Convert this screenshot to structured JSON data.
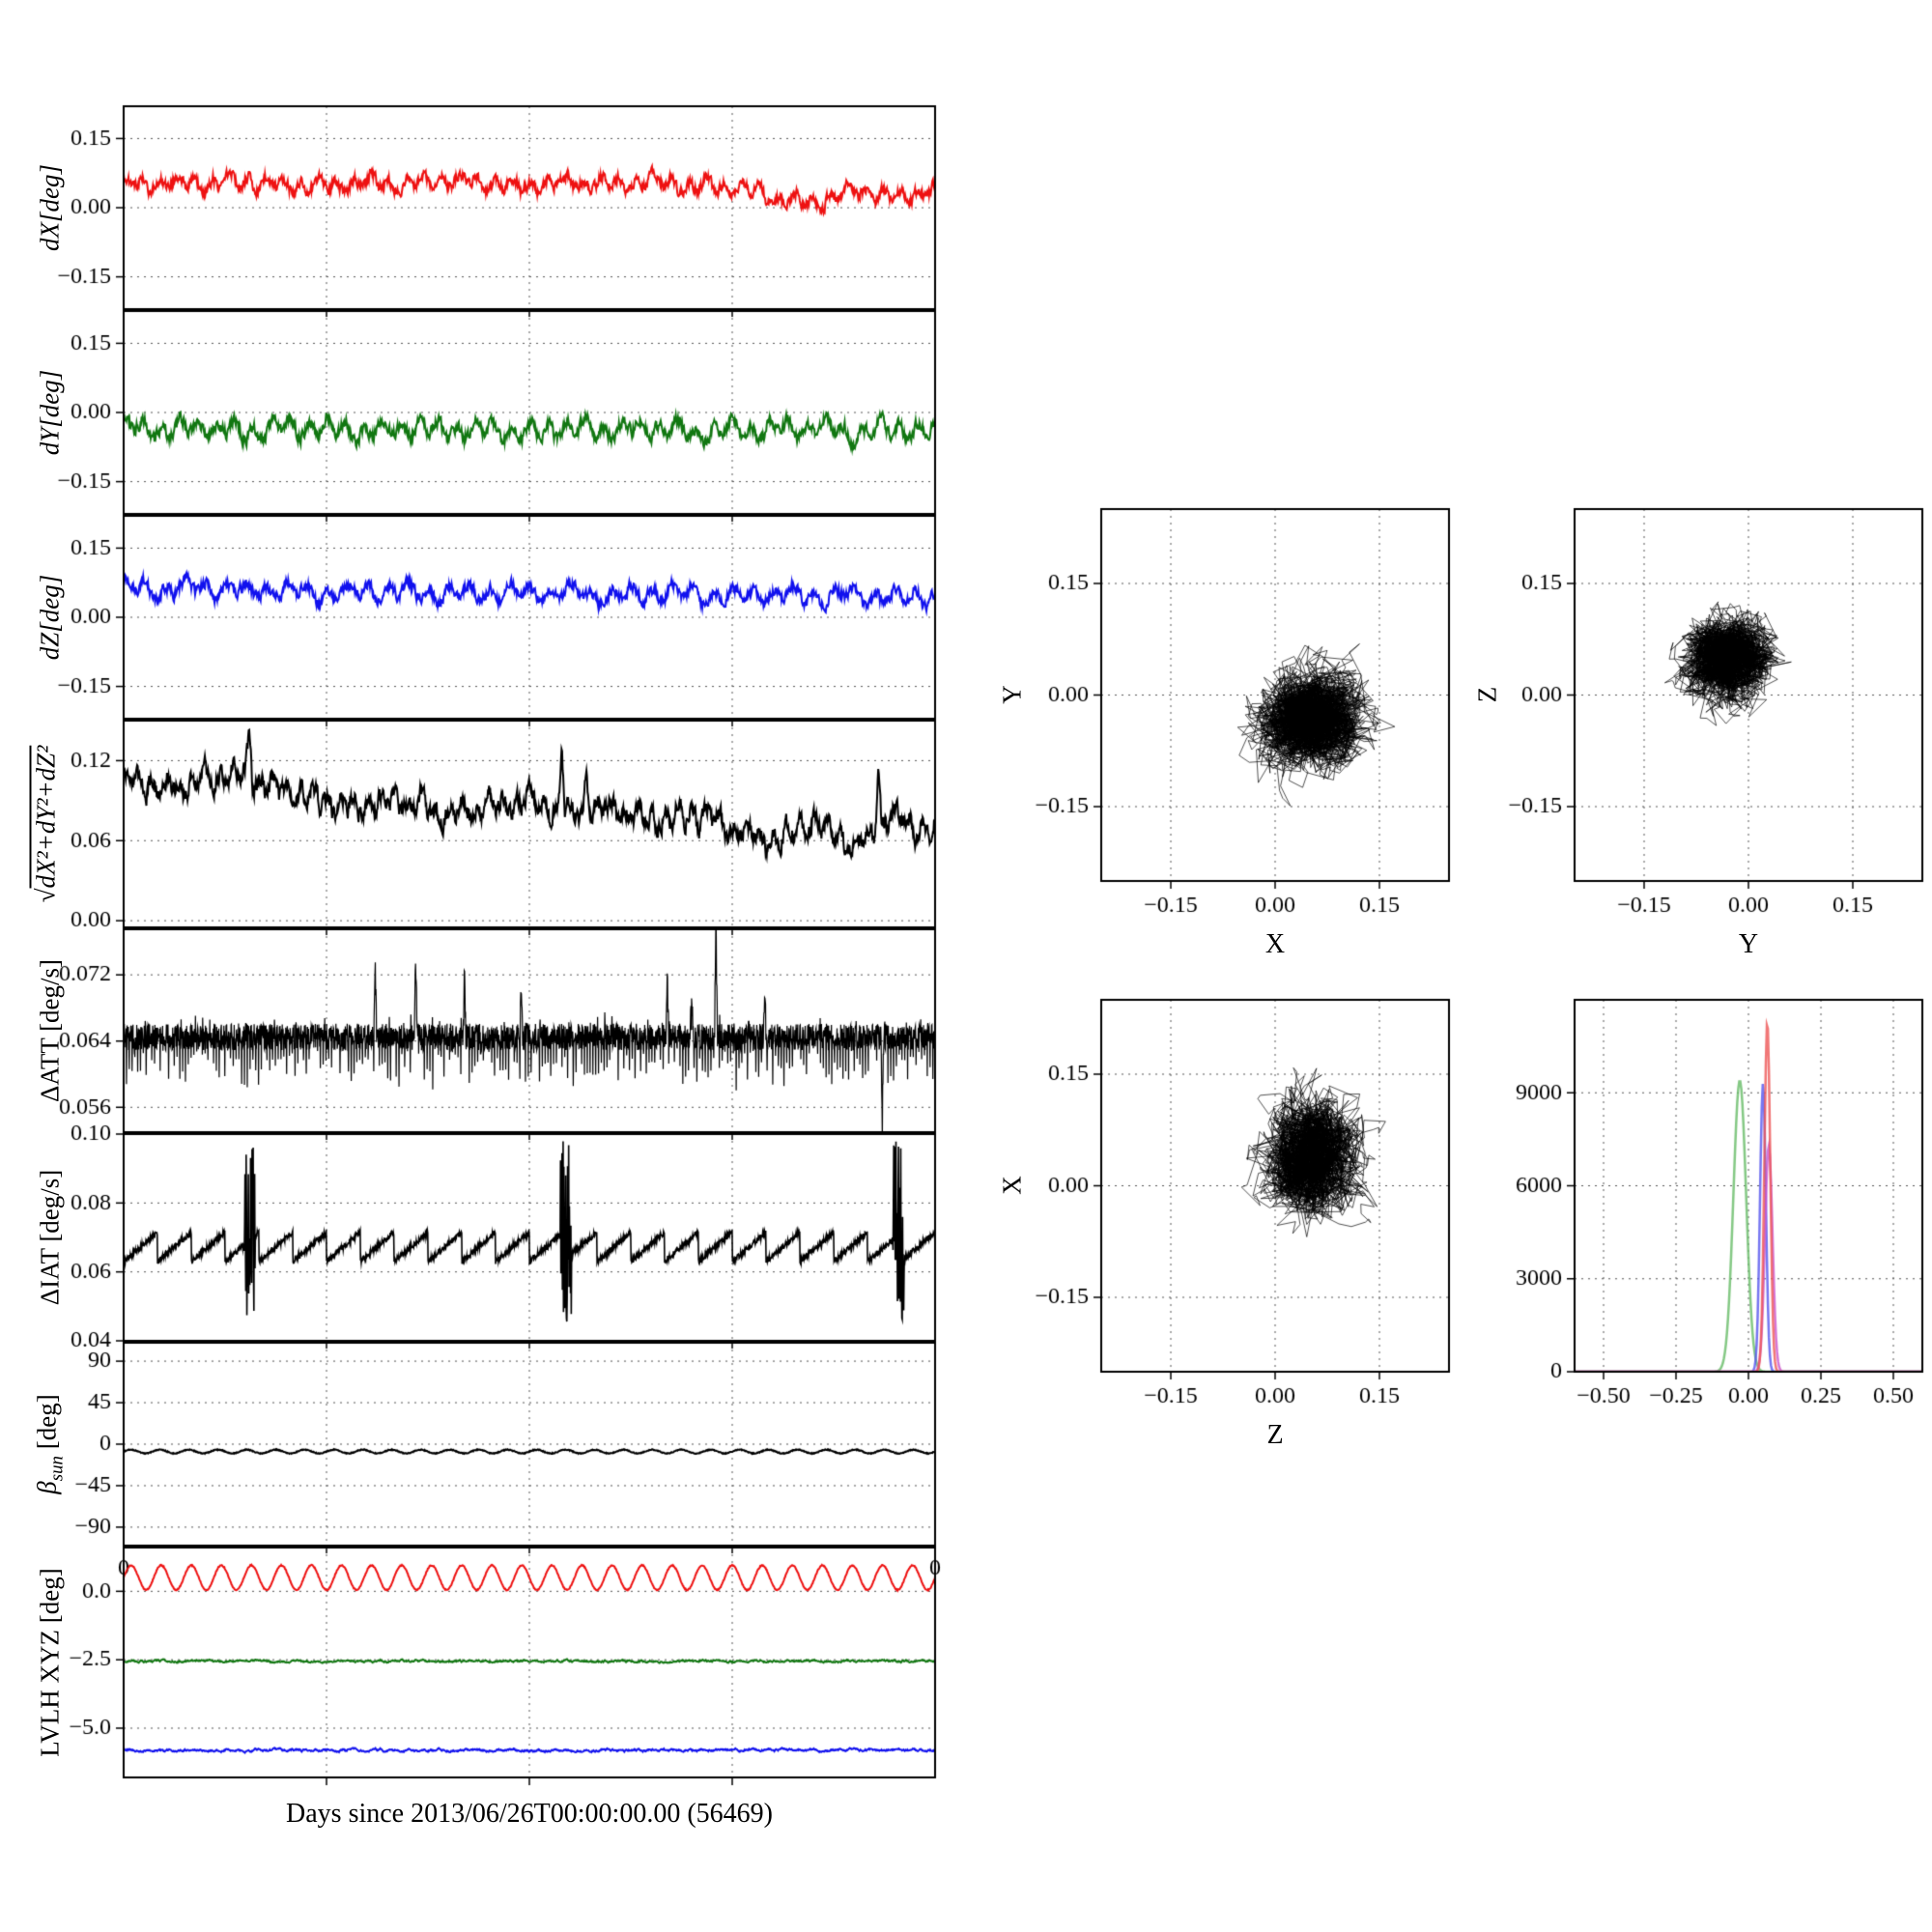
{
  "figure": {
    "background": "#ffffff",
    "xlabel": "Days since 2013/06/26T00:00:00.00 (56469)"
  },
  "chart_data": [
    {
      "id": "dX",
      "type": "line",
      "ylabel": "dX[deg]",
      "ylim": [
        -0.22,
        0.22
      ],
      "ytick_values": [
        0.15,
        0.0,
        -0.15
      ],
      "ytick_labels": [
        "0.15",
        "0.00",
        "−0.15"
      ],
      "x_range_days": [
        0,
        7
      ],
      "series": [
        {
          "color": "#ee1111",
          "lw": 2,
          "gen": {
            "kind": "keypoints",
            "noise": 0.012,
            "wobble": [
              0.012,
              46
            ],
            "points": [
              0.05,
              0.055,
              0.05,
              0.06,
              0.05,
              0.045,
              0.055,
              0.05,
              0.06,
              0.05,
              0.045,
              0.055,
              0.05,
              0.06,
              0.045,
              0.05,
              0.02,
              0.01,
              0.035,
              0.02,
              0.04
            ]
          }
        }
      ]
    },
    {
      "id": "dY",
      "type": "line",
      "ylabel": "dY[deg]",
      "ylim": [
        -0.22,
        0.22
      ],
      "ytick_values": [
        0.15,
        0.0,
        -0.15
      ],
      "ytick_labels": [
        "0.15",
        "0.00",
        "−0.15"
      ],
      "series": [
        {
          "color": "#117711",
          "lw": 2,
          "gen": {
            "kind": "keypoints",
            "noise": 0.013,
            "wobble": [
              0.015,
              44
            ],
            "points": [
              -0.03,
              -0.04,
              -0.03,
              -0.045,
              -0.035,
              -0.03,
              -0.045,
              -0.03,
              -0.04,
              -0.035,
              -0.045,
              -0.03,
              -0.04,
              -0.03,
              -0.045,
              -0.035,
              -0.04,
              -0.03,
              -0.045,
              -0.035,
              -0.04
            ]
          }
        }
      ]
    },
    {
      "id": "dZ",
      "type": "line",
      "ylabel": "dZ[deg]",
      "ylim": [
        -0.22,
        0.22
      ],
      "ytick_values": [
        0.15,
        0.0,
        -0.15
      ],
      "ytick_labels": [
        "0.15",
        "0.00",
        "−0.15"
      ],
      "series": [
        {
          "color": "#1111ee",
          "lw": 2,
          "gen": {
            "kind": "keypoints",
            "noise": 0.012,
            "wobble": [
              0.014,
              40
            ],
            "points": [
              0.065,
              0.06,
              0.065,
              0.055,
              0.06,
              0.05,
              0.06,
              0.055,
              0.05,
              0.055,
              0.05,
              0.055,
              0.045,
              0.055,
              0.05,
              0.045,
              0.05,
              0.045,
              0.05,
              0.04,
              0.05
            ]
          }
        }
      ]
    },
    {
      "id": "mag",
      "type": "line",
      "ylabel_prefix": "√",
      "ylabel_radicand": "dX²+dY²+dZ²",
      "ylim": [
        -0.005,
        0.15
      ],
      "ytick_values": [
        0.12,
        0.06,
        0.0
      ],
      "ytick_labels": [
        "0.12",
        "0.06",
        "0.00"
      ],
      "series": [
        {
          "color": "#000000",
          "lw": 2,
          "gen": {
            "kind": "keypoints",
            "noise": 0.007,
            "wobble": [
              0.006,
              60
            ],
            "spike_width": 0.004,
            "spikes": [
              [
                0.155,
                0.035
              ],
              [
                0.54,
                0.045
              ],
              [
                0.57,
                0.03
              ],
              [
                0.93,
                0.05
              ]
            ],
            "points": [
              0.105,
              0.1,
              0.105,
              0.11,
              0.095,
              0.09,
              0.085,
              0.09,
              0.08,
              0.085,
              0.09,
              0.08,
              0.085,
              0.075,
              0.08,
              0.07,
              0.06,
              0.075,
              0.055,
              0.08,
              0.065
            ]
          }
        }
      ]
    },
    {
      "id": "dATT",
      "type": "line",
      "ylabel": "ΔATT [deg/s]",
      "ylim": [
        0.053,
        0.0775
      ],
      "ytick_values": [
        0.072,
        0.064,
        0.056
      ],
      "ytick_labels": [
        "0.072",
        "0.064",
        "0.056"
      ],
      "series": [
        {
          "color": "#000000",
          "lw": 1.2,
          "n": 2600,
          "gen": {
            "kind": "densenoise",
            "mean": 0.0645,
            "noise": 0.0016,
            "spike_width": 0.0018,
            "spikes": [
              [
                0.31,
                0.009
              ],
              [
                0.36,
                0.011
              ],
              [
                0.42,
                0.008
              ],
              [
                0.49,
                0.006
              ],
              [
                0.67,
                0.007
              ],
              [
                0.7,
                0.006
              ],
              [
                0.73,
                0.016
              ],
              [
                0.79,
                0.006
              ],
              [
                0.935,
                -0.009
              ]
            ]
          }
        }
      ]
    },
    {
      "id": "dIAT",
      "type": "line",
      "ylabel": "ΔIAT [deg/s]",
      "ylim": [
        0.04,
        0.1
      ],
      "ytick_values": [
        0.1,
        0.08,
        0.06,
        0.04
      ],
      "ytick_labels": [
        "0.10",
        "0.08",
        "0.06",
        "0.04"
      ],
      "series": [
        {
          "color": "#000000",
          "lw": 1.6,
          "n": 2200,
          "gen": {
            "kind": "sawtooth",
            "base": 0.063,
            "rise": 0.0085,
            "teeth": 24,
            "noise": 0.0008,
            "bursts": [
              0.155,
              0.545,
              0.955
            ],
            "burst_lo": 0.045,
            "burst_hi": 0.098
          }
        }
      ]
    },
    {
      "id": "beta",
      "type": "line",
      "ylabel_base": "β",
      "ylabel_sub": "sun",
      "ylabel_suffix": " [deg]",
      "ylim": [
        -110,
        110
      ],
      "ytick_values": [
        90,
        45,
        0,
        -45,
        -90
      ],
      "ytick_labels": [
        "90",
        "45",
        "0",
        "−45",
        "−90"
      ],
      "xedge_labels": [
        "0",
        "0"
      ],
      "series": [
        {
          "color": "#000000",
          "lw": 2,
          "gen": {
            "kind": "sine",
            "mean": -8,
            "amp": 2,
            "cycles": 28,
            "noise": 0.5
          }
        }
      ]
    },
    {
      "id": "lvlh",
      "type": "line",
      "ylabel": "LVLH XYZ [deg]",
      "ylim": [
        -6.8,
        1.6
      ],
      "ytick_values": [
        0.0,
        -2.5,
        -5.0
      ],
      "ytick_labels": [
        "0.0",
        "−2.5",
        "−5.0"
      ],
      "series": [
        {
          "color": "#ee1111",
          "lw": 2,
          "gen": {
            "kind": "sine",
            "mean": 0.5,
            "amp": 0.45,
            "cycles": 27,
            "noise": 0.02
          }
        },
        {
          "color": "#117711",
          "lw": 2,
          "gen": {
            "kind": "flat",
            "mean": -2.55,
            "noise": 0.05
          }
        },
        {
          "color": "#1111ee",
          "lw": 2,
          "gen": {
            "kind": "flat",
            "mean": -5.8,
            "noise": 0.06
          }
        }
      ]
    },
    {
      "id": "sxy",
      "type": "scatter",
      "xlabel": "X",
      "ylabel": "Y",
      "xlim": [
        -0.25,
        0.25
      ],
      "ylim": [
        -0.25,
        0.25
      ],
      "xtick_values": [
        -0.15,
        0.0,
        0.15
      ],
      "xtick_labels": [
        "−0.15",
        "0.00",
        "0.15"
      ],
      "ytick_values": [
        0.15,
        0.0,
        -0.15
      ],
      "ytick_labels": [
        "0.15",
        "0.00",
        "−0.15"
      ],
      "series": [
        {
          "color": "#000000",
          "n": 3200,
          "cx": 0.05,
          "cy": -0.03,
          "sx": 0.035,
          "sy": 0.03
        }
      ]
    },
    {
      "id": "syz",
      "type": "scatter",
      "xlabel": "Y",
      "ylabel": "Z",
      "xlim": [
        -0.25,
        0.25
      ],
      "ylim": [
        -0.25,
        0.25
      ],
      "xtick_values": [
        -0.15,
        0.0,
        0.15
      ],
      "xtick_labels": [
        "−0.15",
        "0.00",
        "0.15"
      ],
      "ytick_values": [
        0.15,
        0.0,
        -0.15
      ],
      "ytick_labels": [
        "0.15",
        "0.00",
        "−0.15"
      ],
      "series": [
        {
          "color": "#000000",
          "n": 3000,
          "cx": -0.03,
          "cy": 0.05,
          "sx": 0.028,
          "sy": 0.025
        }
      ]
    },
    {
      "id": "szx",
      "type": "scatter",
      "xlabel": "Z",
      "ylabel": "X",
      "xlim": [
        -0.25,
        0.25
      ],
      "ylim": [
        -0.25,
        0.25
      ],
      "xtick_values": [
        -0.15,
        0.0,
        0.15
      ],
      "xtick_labels": [
        "−0.15",
        "0.00",
        "0.15"
      ],
      "ytick_values": [
        0.15,
        0.0,
        -0.15
      ],
      "ytick_labels": [
        "0.15",
        "0.00",
        "−0.15"
      ],
      "series": [
        {
          "color": "#000000",
          "n": 2800,
          "cx": 0.05,
          "cy": 0.04,
          "sx": 0.03,
          "sy": 0.035
        }
      ]
    },
    {
      "id": "hist",
      "type": "curves",
      "xlim": [
        -0.6,
        0.6
      ],
      "ylim": [
        0,
        12000
      ],
      "xtick_values": [
        -0.5,
        -0.25,
        0.0,
        0.25,
        0.5
      ],
      "xtick_labels": [
        "−0.50",
        "−0.25",
        "0.00",
        "0.25",
        "0.50"
      ],
      "ytick_values": [
        0,
        3000,
        6000,
        9000
      ],
      "ytick_labels": [
        "0",
        "3000",
        "6000",
        "9000"
      ],
      "series": [
        {
          "color": "#66bb66",
          "center": -0.03,
          "sigma": 0.022,
          "peak": 9400
        },
        {
          "color": "#5555ee",
          "center": 0.05,
          "sigma": 0.01,
          "peak": 9300
        },
        {
          "color": "#cc55cc",
          "center": 0.07,
          "sigma": 0.013,
          "peak": 7300
        },
        {
          "color": "#ee5555",
          "center": 0.065,
          "sigma": 0.01,
          "peak": 11300
        }
      ]
    }
  ]
}
